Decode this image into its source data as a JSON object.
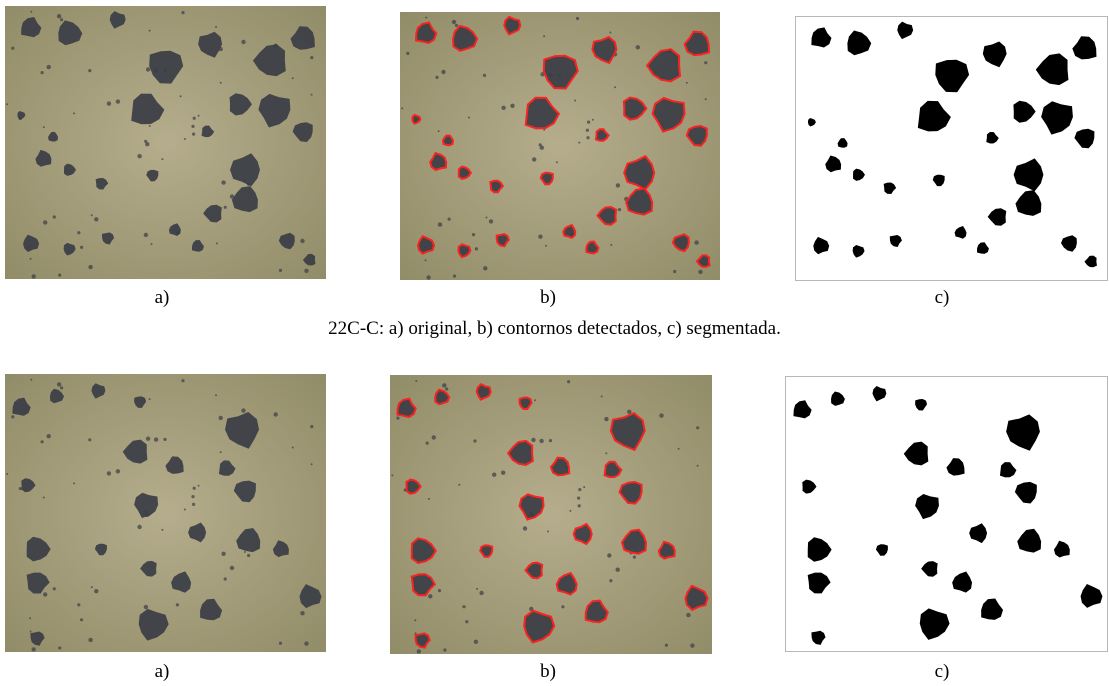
{
  "row1": {
    "labels": [
      "a)",
      "b)",
      "c)"
    ],
    "caption": "22C-C: a) original, b) contornos detectados, c) segmentada."
  },
  "row2": {
    "labels": [
      "a)",
      "b)",
      "c)"
    ]
  },
  "colors": {
    "micro_background": "#b5ad8c",
    "micro_background_dark": "#8f8a66",
    "nodule": "#3a3d45",
    "contour": "#ff1a1a",
    "segment": "#000000"
  }
}
